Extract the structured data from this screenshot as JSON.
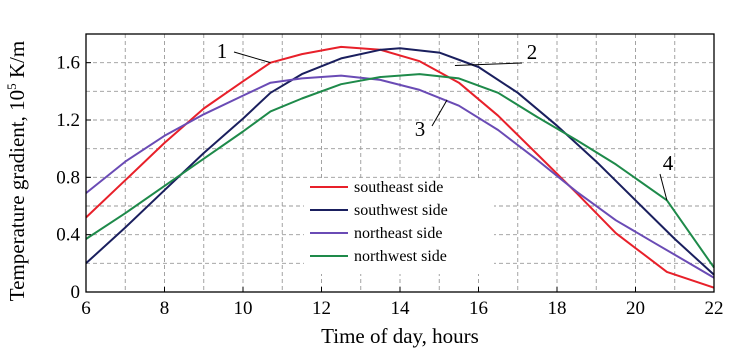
{
  "chart_data": {
    "type": "line",
    "xlabel": "Time of day, hours",
    "ylabel": {
      "prefix": "Temperature gradient, 10",
      "sup": "5",
      "suffix": " K/m"
    },
    "xlim": [
      6,
      22
    ],
    "ylim": [
      0,
      1.8
    ],
    "xticks": [
      "6",
      "8",
      "10",
      "12",
      "14",
      "16",
      "18",
      "20",
      "22"
    ],
    "yticks": [
      "0",
      "0.4",
      "0.8",
      "1.2",
      "1.6"
    ],
    "grid": true,
    "legend_position": "bottom-center",
    "series": [
      {
        "name": "southeast side",
        "color": "#e8202a",
        "label": "1",
        "x": [
          6,
          7,
          8,
          9,
          10,
          10.7,
          11.5,
          12.5,
          13.5,
          14.5,
          15.5,
          16.5,
          17.5,
          18.5,
          19.5,
          20.8,
          22
        ],
        "y": [
          0.52,
          0.78,
          1.04,
          1.28,
          1.47,
          1.6,
          1.66,
          1.71,
          1.69,
          1.61,
          1.46,
          1.23,
          0.96,
          0.69,
          0.41,
          0.14,
          0.03
        ]
      },
      {
        "name": "southwest side",
        "color": "#1a1f5e",
        "label": "2",
        "x": [
          6,
          7,
          8,
          9,
          10,
          10.7,
          11.5,
          12.5,
          13.5,
          14,
          15,
          16,
          17,
          18,
          19,
          20,
          21,
          22
        ],
        "y": [
          0.2,
          0.45,
          0.71,
          0.97,
          1.21,
          1.39,
          1.52,
          1.63,
          1.69,
          1.7,
          1.67,
          1.57,
          1.39,
          1.16,
          0.91,
          0.64,
          0.37,
          0.12
        ]
      },
      {
        "name": "northeast side",
        "color": "#6a4bb5",
        "label": "3",
        "x": [
          6,
          7,
          8,
          9,
          10,
          10.7,
          11.5,
          12.5,
          13.5,
          14.5,
          15.5,
          16.5,
          17.5,
          18.5,
          19.5,
          20.5,
          21.5,
          22
        ],
        "y": [
          0.69,
          0.91,
          1.09,
          1.24,
          1.37,
          1.46,
          1.49,
          1.51,
          1.48,
          1.41,
          1.3,
          1.13,
          0.92,
          0.7,
          0.5,
          0.34,
          0.18,
          0.1
        ]
      },
      {
        "name": "northwest side",
        "color": "#1e8a4a",
        "label": "4",
        "x": [
          6,
          7,
          8,
          9,
          10,
          10.7,
          11.5,
          12.5,
          13.5,
          14.5,
          15.5,
          16.5,
          17.5,
          18.5,
          19.5,
          20.8,
          22
        ],
        "y": [
          0.37,
          0.55,
          0.74,
          0.93,
          1.12,
          1.26,
          1.35,
          1.45,
          1.5,
          1.52,
          1.49,
          1.39,
          1.22,
          1.06,
          0.89,
          0.64,
          0.17
        ]
      }
    ]
  }
}
